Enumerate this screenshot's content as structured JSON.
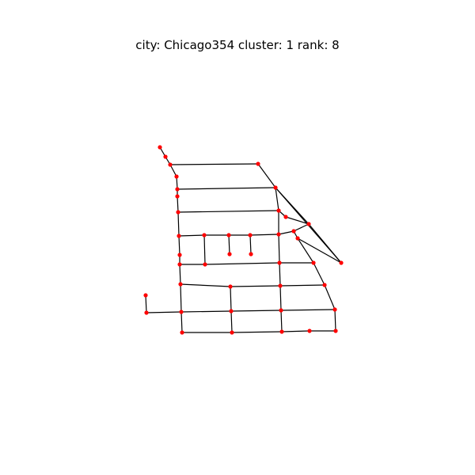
{
  "figure": {
    "title": "city: Chicago354 cluster: 1 rank: 8"
  },
  "colors": {
    "node": "#ff0000",
    "edge": "#000000",
    "background": "#ffffff"
  }
}
